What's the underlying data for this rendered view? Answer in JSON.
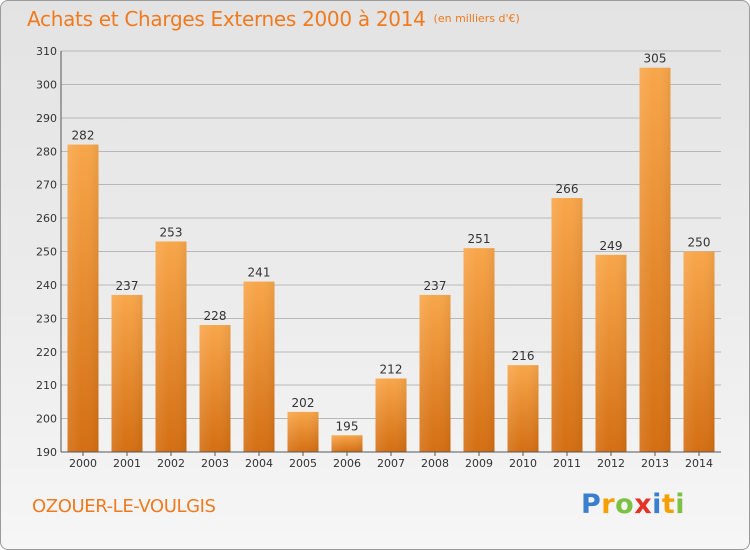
{
  "header": {
    "title": "Achats et Charges Externes 2000 à 2014",
    "unit": "(en milliers d'€)"
  },
  "footer": {
    "city": "OZOUER-LE-VOULGIS",
    "logo": {
      "text": "Proxiti",
      "letters": [
        {
          "char": "P",
          "color": "#3a7fcf"
        },
        {
          "char": "r",
          "color": "#f5a000"
        },
        {
          "char": "o",
          "color": "#7cc242"
        },
        {
          "char": "x",
          "color": "#e63329"
        },
        {
          "char": "i",
          "color": "#3a7fcf"
        },
        {
          "char": "t",
          "color": "#f5a000"
        },
        {
          "char": "i",
          "color": "#7cc242"
        }
      ]
    }
  },
  "colors": {
    "accent": "#f07a1e",
    "bar_top": "#f8a64a",
    "bar_bottom": "#d46e12",
    "grid": "#b8b8b8"
  },
  "chart_data": {
    "type": "bar",
    "title": "Achats et Charges Externes 2000 à 2014",
    "subtitle": "(en milliers d'€)",
    "xlabel": "",
    "ylabel": "",
    "categories": [
      "2000",
      "2001",
      "2002",
      "2003",
      "2004",
      "2005",
      "2006",
      "2007",
      "2008",
      "2009",
      "2010",
      "2011",
      "2012",
      "2013",
      "2014"
    ],
    "values": [
      282,
      237,
      253,
      228,
      241,
      202,
      195,
      212,
      237,
      251,
      216,
      266,
      249,
      305,
      250
    ],
    "ylim": [
      190,
      310
    ],
    "yticks": [
      190,
      200,
      210,
      220,
      230,
      240,
      250,
      260,
      270,
      280,
      290,
      300,
      310
    ],
    "grid": true,
    "legend": "none"
  }
}
